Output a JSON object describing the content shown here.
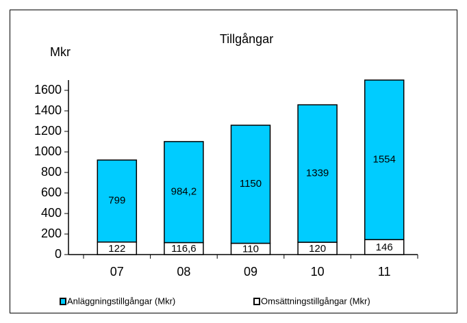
{
  "chart_data": {
    "type": "stacked_bar",
    "title": "Tillgångar",
    "y_label": "Mkr",
    "categories": [
      "07",
      "08",
      "09",
      "10",
      "11"
    ],
    "series": [
      {
        "name": "Omsättningstillgångar (Mkr)",
        "color": "#ffffff",
        "values": [
          122,
          116.6,
          110,
          120,
          146
        ],
        "value_labels": [
          "122",
          "116,6",
          "110",
          "120",
          "146"
        ]
      },
      {
        "name": "Anläggningstillgångar (Mkr)",
        "color": "#00ccff",
        "values": [
          799,
          984.2,
          1150,
          1339,
          1554
        ],
        "value_labels": [
          "799",
          "984,2",
          "1150",
          "1339",
          "1554"
        ]
      }
    ],
    "ylim": [
      0,
      1700
    ],
    "yticks": [
      0,
      200,
      400,
      600,
      800,
      1000,
      1200,
      1400,
      1600
    ],
    "grid": false
  }
}
